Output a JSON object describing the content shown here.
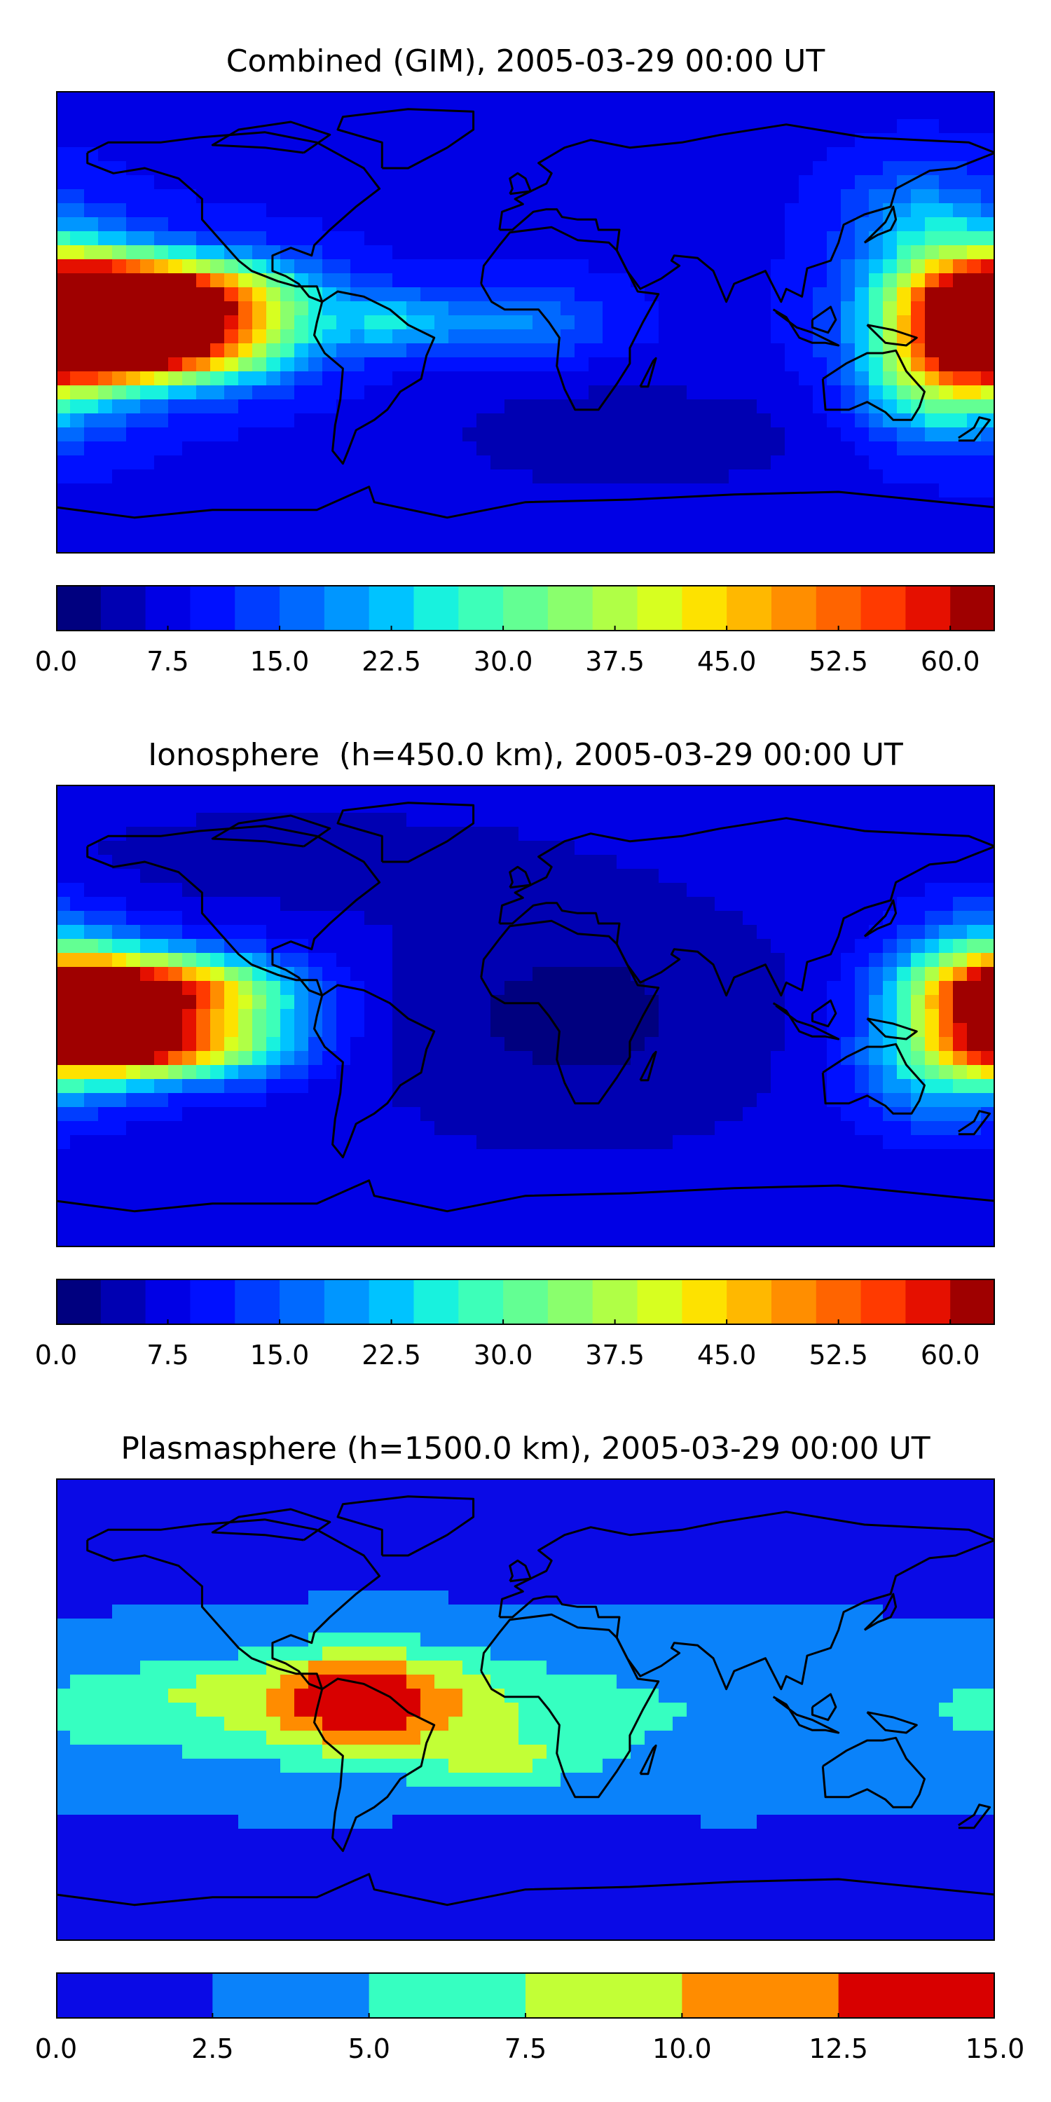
{
  "colors": {
    "jet21": [
      "#00007f",
      "#0000b2",
      "#0000e5",
      "#0010ff",
      "#003dff",
      "#0069ff",
      "#0096ff",
      "#00c3ff",
      "#18f2de",
      "#3dffb9",
      "#63ff93",
      "#8aff6d",
      "#b0ff46",
      "#d7ff20",
      "#fde200",
      "#ffb800",
      "#ff8e00",
      "#ff6400",
      "#ff3a00",
      "#e51000",
      "#9f0000"
    ],
    "jet6": [
      "#0a0ae6",
      "#0a82fa",
      "#36ffc1",
      "#c2ff36",
      "#ff8c00",
      "#d80000"
    ],
    "land_outline": "#000000"
  },
  "chart_data": [
    {
      "type": "heatmap",
      "title": "Combined (GIM), 2005-03-29 00:00 UT",
      "projection": "plate-carree world map with coastlines",
      "colorbar": {
        "vmin": 0.0,
        "vmax": 63.0,
        "levels": 21,
        "ticks": [
          "0.0",
          "7.5",
          "15.0",
          "22.5",
          "30.0",
          "37.5",
          "45.0",
          "52.5",
          "60.0"
        ],
        "tick_values": [
          0.0,
          7.5,
          15.0,
          22.5,
          30.0,
          37.5,
          45.0,
          52.5,
          60.0
        ]
      },
      "background_value": 8.5,
      "features": [
        {
          "lon": -150,
          "lat": 10,
          "value": 62,
          "sx": 35,
          "sy": 10
        },
        {
          "lon": -150,
          "lat": -10,
          "value": 57,
          "sx": 30,
          "sy": 9
        },
        {
          "lon": -175,
          "lat": 0,
          "value": 35,
          "sx": 30,
          "sy": 18
        },
        {
          "lon": -110,
          "lat": 0,
          "value": 25,
          "sx": 25,
          "sy": 16
        },
        {
          "lon": -50,
          "lat": 0,
          "value": 22,
          "sx": 18,
          "sy": 8
        },
        {
          "lon": 0,
          "lat": 0,
          "value": 18,
          "sx": 22,
          "sy": 10
        },
        {
          "lon": 175,
          "lat": 0,
          "value": 38,
          "sx": 25,
          "sy": 22
        },
        {
          "lon": 155,
          "lat": -25,
          "value": 22,
          "sx": 20,
          "sy": 15
        },
        {
          "lon": 150,
          "lat": 40,
          "value": 18,
          "sx": 20,
          "sy": 15
        },
        {
          "lon": 40,
          "lat": -45,
          "value": 3,
          "sx": 50,
          "sy": 15
        }
      ]
    },
    {
      "type": "heatmap",
      "title": "Ionosphere  (h=450.0 km), 2005-03-29 00:00 UT",
      "projection": "plate-carree world map with coastlines",
      "colorbar": {
        "vmin": 0.0,
        "vmax": 63.0,
        "levels": 21,
        "ticks": [
          "0.0",
          "7.5",
          "15.0",
          "22.5",
          "30.0",
          "37.5",
          "45.0",
          "52.5",
          "60.0"
        ],
        "tick_values": [
          0.0,
          7.5,
          15.0,
          22.5,
          30.0,
          37.5,
          45.0,
          52.5,
          60.0
        ]
      },
      "background_value": 7,
      "features": [
        {
          "lon": -150,
          "lat": 10,
          "value": 52,
          "sx": 32,
          "sy": 9
        },
        {
          "lon": -150,
          "lat": -12,
          "value": 50,
          "sx": 30,
          "sy": 8
        },
        {
          "lon": -170,
          "lat": 0,
          "value": 30,
          "sx": 30,
          "sy": 18
        },
        {
          "lon": -110,
          "lat": 0,
          "value": 20,
          "sx": 25,
          "sy": 16
        },
        {
          "lon": 175,
          "lat": 5,
          "value": 30,
          "sx": 22,
          "sy": 22
        },
        {
          "lon": 150,
          "lat": -25,
          "value": 15,
          "sx": 20,
          "sy": 15
        },
        {
          "lon": 20,
          "lat": 0,
          "value": 2,
          "sx": 50,
          "sy": 30
        },
        {
          "lon": -90,
          "lat": 60,
          "value": 4,
          "sx": 60,
          "sy": 12
        }
      ]
    },
    {
      "type": "heatmap",
      "title": "Plasmasphere (h=1500.0 km), 2005-03-29 00:00 UT",
      "projection": "plate-carree world map with coastlines",
      "colorbar": {
        "vmin": 0.0,
        "vmax": 15.0,
        "levels": 6,
        "ticks": [
          "0.0",
          "2.5",
          "5.0",
          "7.5",
          "10.0",
          "12.5",
          "15.0"
        ],
        "tick_values": [
          0.0,
          2.5,
          5.0,
          7.5,
          10.0,
          12.5,
          15.0
        ]
      },
      "background_value": 2.0,
      "features": [
        {
          "lon": 0,
          "lat": -2,
          "value": 4.5,
          "sx": 200,
          "sy": 24
        },
        {
          "lon": -60,
          "lat": 5,
          "value": 8.0,
          "sx": 30,
          "sy": 14
        },
        {
          "lon": -80,
          "lat": 0,
          "value": 5.0,
          "sx": 80,
          "sy": 14
        },
        {
          "lon": -65,
          "lat": 5,
          "value": 6.5,
          "sx": 15,
          "sy": 10
        },
        {
          "lon": -10,
          "lat": -20,
          "value": 5.5,
          "sx": 25,
          "sy": 7
        },
        {
          "lon": -170,
          "lat": 0,
          "value": 4.0,
          "sx": 15,
          "sy": 6
        },
        {
          "lon": -130,
          "lat": 10,
          "value": 3.5,
          "sx": 15,
          "sy": 6
        },
        {
          "lon": 0,
          "lat": -55,
          "value": 1.0,
          "sx": 30,
          "sy": 8
        }
      ]
    }
  ]
}
